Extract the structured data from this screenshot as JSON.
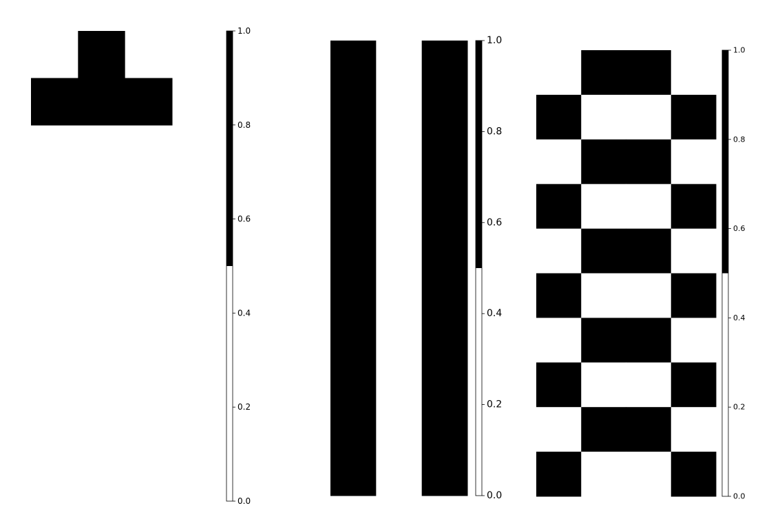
{
  "colors": {
    "high": "#000000",
    "low": "#ffffff",
    "axis": "#000000"
  },
  "chart_data": [
    {
      "type": "heatmap",
      "title": "",
      "xlabel": "",
      "ylabel": "",
      "grid": false,
      "axes_visible": false,
      "colormap": "binary two-level (0 = white, 1 = black)",
      "rows": 2,
      "cols": 3,
      "matrix": [
        [
          0,
          1,
          0
        ],
        [
          1,
          1,
          1
        ]
      ],
      "colorbar": {
        "vmin": 0,
        "vmax": 1,
        "threshold": 0.5,
        "tick_values": [
          0.0,
          0.2,
          0.4,
          0.6,
          0.8,
          1.0
        ],
        "tick_labels": [
          "0.0",
          "0.2",
          "0.4",
          "0.6",
          "0.8",
          "1.0"
        ]
      }
    },
    {
      "type": "heatmap",
      "title": "",
      "xlabel": "",
      "ylabel": "",
      "grid": false,
      "axes_visible": false,
      "colormap": "binary two-level (0 = white, 1 = black)",
      "rows": 1,
      "cols": 3,
      "matrix": [
        [
          1,
          0,
          1
        ]
      ],
      "colorbar": {
        "vmin": 0,
        "vmax": 1,
        "threshold": 0.5,
        "tick_values": [
          0.0,
          0.2,
          0.4,
          0.6,
          0.8,
          1.0
        ],
        "tick_labels": [
          "0.0",
          "0.2",
          "0.4",
          "0.6",
          "0.8",
          "1.0"
        ]
      }
    },
    {
      "type": "heatmap",
      "title": "",
      "xlabel": "",
      "ylabel": "",
      "grid": false,
      "axes_visible": false,
      "colormap": "binary two-level (0 = white, 1 = black)",
      "rows": 10,
      "cols": 4,
      "matrix": [
        [
          0,
          1,
          1,
          0
        ],
        [
          1,
          0,
          0,
          1
        ],
        [
          0,
          1,
          1,
          0
        ],
        [
          1,
          0,
          0,
          1
        ],
        [
          0,
          1,
          1,
          0
        ],
        [
          1,
          0,
          0,
          1
        ],
        [
          0,
          1,
          1,
          0
        ],
        [
          1,
          0,
          0,
          1
        ],
        [
          0,
          1,
          1,
          0
        ],
        [
          1,
          0,
          0,
          1
        ]
      ],
      "colorbar": {
        "vmin": 0,
        "vmax": 1,
        "threshold": 0.5,
        "tick_values": [
          0.0,
          0.2,
          0.4,
          0.6,
          0.8,
          1.0
        ],
        "tick_labels": [
          "0.0",
          "0.2",
          "0.4",
          "0.6",
          "0.8",
          "1.0"
        ]
      }
    }
  ]
}
